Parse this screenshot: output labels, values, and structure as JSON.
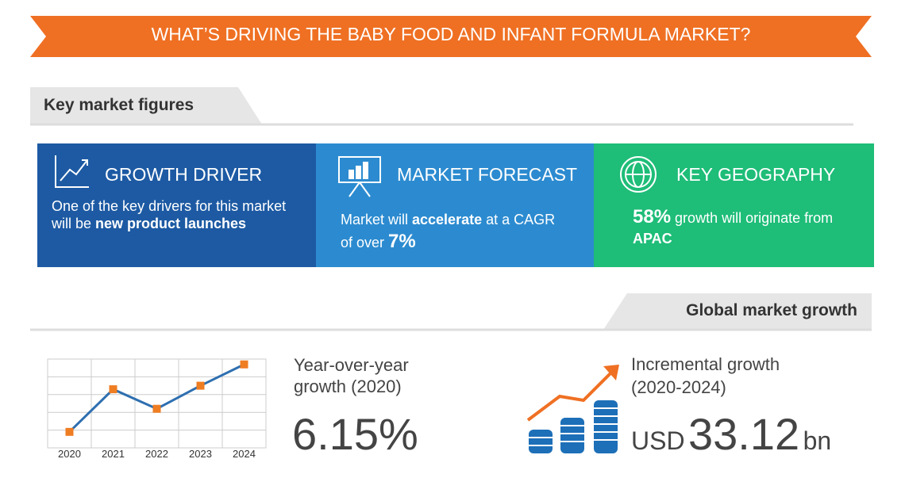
{
  "banner": {
    "title": "WHAT’S DRIVING THE BABY FOOD AND INFANT FORMULA MARKET?"
  },
  "sections": [
    {
      "title": "Key market figures"
    },
    {
      "title": "Global market growth"
    }
  ],
  "cards": [
    {
      "title": "GROWTH DRIVER",
      "text": [
        "One of the key drivers for this market will be ",
        "new product launches"
      ]
    },
    {
      "title": "MARKET FORECAST",
      "text": [
        "Market will ",
        "accelerate",
        " at a CAGR of over ",
        "7%"
      ]
    },
    {
      "title": "KEY GEOGRAPHY",
      "text": [
        "58%",
        " growth will originate from ",
        "APAC"
      ]
    }
  ],
  "yoy": {
    "label": "Year-over-year growth (2020)",
    "value": "6.15%"
  },
  "incremental": {
    "label": "Incremental growth (2020-2024)",
    "currency": "USD",
    "value": "33.12",
    "unit": "bn"
  },
  "chart_data": {
    "type": "line",
    "categories": [
      "2020",
      "2021",
      "2022",
      "2023",
      "2024"
    ],
    "values": [
      0.9,
      3.3,
      2.2,
      3.5,
      4.7
    ],
    "ylim": [
      0,
      5
    ],
    "color": "#2e6fb0",
    "marker_color": "#ef7d22"
  }
}
